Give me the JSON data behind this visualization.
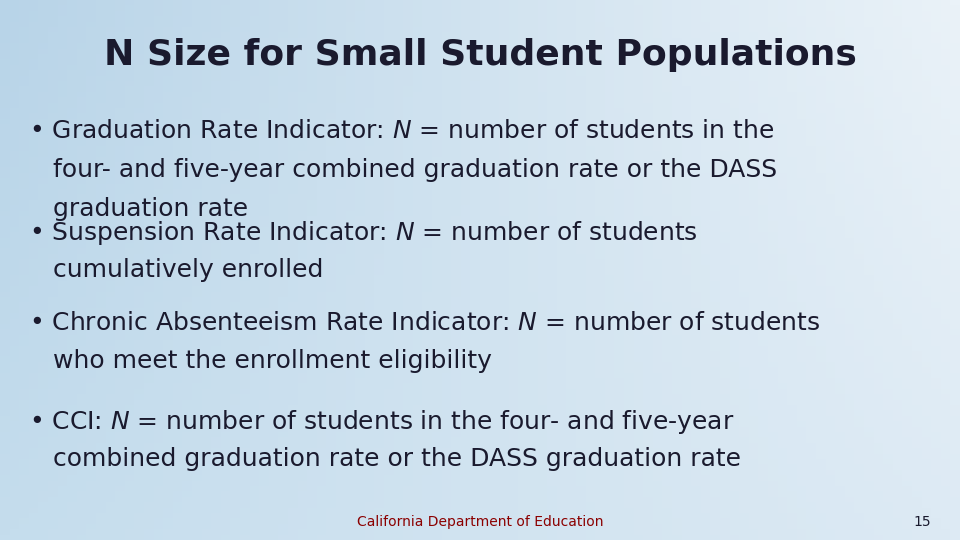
{
  "title": "N Size for Small Student Populations",
  "title_fontsize": 26,
  "title_color": "#1a1a2e",
  "bullet_fontsize": 18,
  "bullet_color": "#1a1a2e",
  "footer_text": "California Department of Education",
  "footer_color": "#8B0000",
  "footer_fontsize": 10,
  "page_number": "15",
  "bg_color_topleft": "#b8d4e8",
  "bg_color_topright": "#eaf2f8",
  "bg_color_bottomleft": "#c5dded",
  "bg_color_bottomright": "#ddeaf4",
  "bullets": [
    {
      "lines": [
        {
          "parts": [
            {
              "text": "• Graduation Rate Indicator: ",
              "italic": false
            },
            {
              "text": "N",
              "italic": true
            },
            {
              "text": " = number of students in the",
              "italic": false
            }
          ]
        },
        {
          "parts": [
            {
              "text": "   four- and five-year combined graduation rate or the DASS",
              "italic": false
            }
          ]
        },
        {
          "parts": [
            {
              "text": "   graduation rate",
              "italic": false
            }
          ]
        }
      ]
    },
    {
      "lines": [
        {
          "parts": [
            {
              "text": "• Suspension Rate Indicator: ",
              "italic": false
            },
            {
              "text": "N",
              "italic": true
            },
            {
              "text": " = number of students",
              "italic": false
            }
          ]
        },
        {
          "parts": [
            {
              "text": "   cumulatively enrolled",
              "italic": false
            }
          ]
        }
      ]
    },
    {
      "lines": [
        {
          "parts": [
            {
              "text": "• Chronic Absenteeism Rate Indicator: ",
              "italic": false
            },
            {
              "text": "N",
              "italic": true
            },
            {
              "text": " = number of students",
              "italic": false
            }
          ]
        },
        {
          "parts": [
            {
              "text": "   who meet the enrollment eligibility",
              "italic": false
            }
          ]
        }
      ]
    },
    {
      "lines": [
        {
          "parts": [
            {
              "text": "• CCI: ",
              "italic": false
            },
            {
              "text": "N",
              "italic": true
            },
            {
              "text": " = number of students in the four- and five-year",
              "italic": false
            }
          ]
        },
        {
          "parts": [
            {
              "text": "   combined graduation rate or the DASS graduation rate",
              "italic": false
            }
          ]
        }
      ]
    }
  ]
}
